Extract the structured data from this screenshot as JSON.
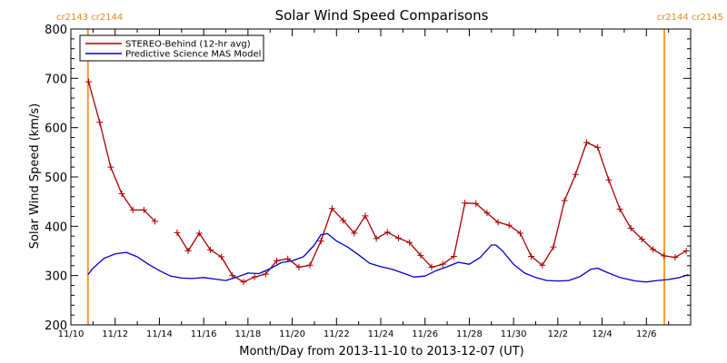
{
  "chart_data": {
    "type": "line",
    "title": "Solar Wind Speed Comparisons",
    "xlabel": "Month/Day from 2013-11-10 to 2013-12-07 (UT)",
    "ylabel": "Solar Wind Speed (km/s)",
    "xlim": [
      "2013-11-10",
      "2013-12-07"
    ],
    "ylim": [
      200,
      800
    ],
    "yticks": [
      200,
      300,
      400,
      500,
      600,
      700,
      800
    ],
    "xtick_labels": [
      "11/10",
      "11/12",
      "11/14",
      "11/16",
      "11/18",
      "11/20",
      "11/22",
      "11/24",
      "11/26",
      "11/28",
      "11/30",
      "12/2",
      "12/4",
      "12/6"
    ],
    "xtick_days": [
      0,
      2,
      4,
      6,
      8,
      10,
      12,
      14,
      16,
      18,
      20,
      22,
      24,
      26
    ],
    "legend_position": "top-left",
    "carrington_markers": [
      {
        "day": 0.77,
        "left_label": "cr2143",
        "right_label": "cr2144",
        "color": "#ff9933"
      },
      {
        "day": 26.81,
        "left_label": "cr2144",
        "right_label": "cr2145",
        "color": "#ff9933"
      }
    ],
    "series": [
      {
        "name": "STEREO-Behind (12-hr avg)",
        "color": "#aa0000",
        "marker": "+",
        "segments": [
          [
            [
              0.8,
              693
            ],
            [
              1.3,
              611
            ],
            [
              1.8,
              520
            ],
            [
              2.3,
              466
            ],
            [
              2.8,
              433
            ],
            [
              3.3,
              433
            ],
            [
              3.8,
              410
            ]
          ],
          [
            [
              4.8,
              387
            ],
            [
              5.3,
              350
            ],
            [
              5.8,
              386
            ],
            [
              6.3,
              352
            ],
            [
              6.8,
              338
            ],
            [
              7.3,
              300
            ],
            [
              7.8,
              287
            ],
            [
              8.3,
              297
            ],
            [
              8.8,
              303
            ],
            [
              9.3,
              330
            ],
            [
              9.8,
              334
            ],
            [
              10.3,
              317
            ],
            [
              10.8,
              321
            ],
            [
              11.3,
              370
            ],
            [
              11.8,
              436
            ],
            [
              12.3,
              412
            ],
            [
              12.8,
              386
            ],
            [
              13.3,
              421
            ],
            [
              13.8,
              375
            ],
            [
              14.3,
              388
            ],
            [
              14.8,
              376
            ],
            [
              15.3,
              367
            ],
            [
              15.8,
              341
            ],
            [
              16.3,
              317
            ],
            [
              16.8,
              323
            ],
            [
              17.3,
              339
            ],
            [
              17.8,
              447
            ],
            [
              18.3,
              446
            ],
            [
              18.8,
              427
            ],
            [
              19.3,
              408
            ],
            [
              19.8,
              402
            ],
            [
              20.3,
              386
            ],
            [
              20.8,
              339
            ],
            [
              21.3,
              321
            ],
            [
              21.8,
              358
            ],
            [
              22.3,
              452
            ],
            [
              22.8,
              505
            ],
            [
              23.3,
              570
            ],
            [
              23.8,
              560
            ],
            [
              24.3,
              494
            ],
            [
              24.8,
              435
            ],
            [
              25.3,
              396
            ],
            [
              25.8,
              374
            ],
            [
              26.3,
              353
            ],
            [
              26.8,
              340
            ],
            [
              27.3,
              337
            ],
            [
              27.8,
              350
            ]
          ]
        ]
      },
      {
        "name": "Predictive Science MAS Model",
        "color": "#0000cc",
        "marker": "none",
        "segments": [
          [
            [
              0.77,
              302
            ],
            [
              1.0,
              315
            ],
            [
              1.5,
              335
            ],
            [
              2.0,
              344
            ],
            [
              2.5,
              347
            ],
            [
              3.0,
              338
            ],
            [
              3.5,
              323
            ],
            [
              4.0,
              310
            ],
            [
              4.5,
              299
            ],
            [
              5.0,
              295
            ],
            [
              5.5,
              294
            ],
            [
              6.0,
              296
            ],
            [
              6.5,
              293
            ],
            [
              7.0,
              290
            ],
            [
              7.5,
              297
            ],
            [
              8.0,
              305
            ],
            [
              8.5,
              304
            ],
            [
              9.0,
              314
            ],
            [
              9.5,
              326
            ],
            [
              10.0,
              330
            ],
            [
              10.5,
              338
            ],
            [
              11.0,
              362
            ],
            [
              11.3,
              383
            ],
            [
              11.6,
              385
            ],
            [
              12.0,
              370
            ],
            [
              12.5,
              358
            ],
            [
              13.0,
              342
            ],
            [
              13.5,
              325
            ],
            [
              14.0,
              318
            ],
            [
              14.5,
              313
            ],
            [
              15.0,
              305
            ],
            [
              15.5,
              297
            ],
            [
              16.0,
              299
            ],
            [
              16.5,
              310
            ],
            [
              17.0,
              318
            ],
            [
              17.5,
              327
            ],
            [
              18.0,
              323
            ],
            [
              18.5,
              337
            ],
            [
              19.0,
              362
            ],
            [
              19.2,
              362
            ],
            [
              19.5,
              350
            ],
            [
              20.0,
              323
            ],
            [
              20.5,
              305
            ],
            [
              21.0,
              296
            ],
            [
              21.5,
              290
            ],
            [
              22.0,
              289
            ],
            [
              22.5,
              290
            ],
            [
              23.0,
              298
            ],
            [
              23.5,
              313
            ],
            [
              23.8,
              315
            ],
            [
              24.2,
              307
            ],
            [
              24.8,
              296
            ],
            [
              25.5,
              289
            ],
            [
              26.0,
              287
            ],
            [
              26.5,
              290
            ],
            [
              27.0,
              292
            ],
            [
              27.5,
              296
            ],
            [
              27.9,
              302
            ]
          ]
        ]
      }
    ]
  }
}
